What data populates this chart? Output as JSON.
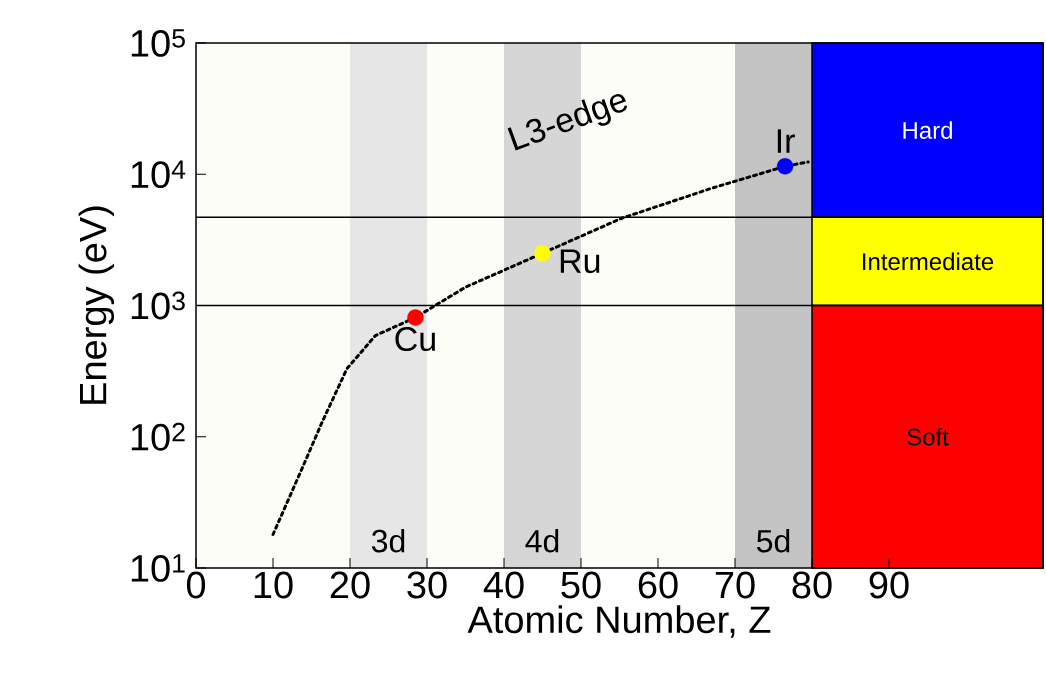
{
  "chart_data": {
    "type": "line",
    "xlabel": "Atomic Number, Z",
    "ylabel": "Energy (eV)",
    "log": "y",
    "xlim": [
      0,
      110
    ],
    "ylim": [
      10,
      100000
    ],
    "xticks": [
      0,
      10,
      20,
      30,
      40,
      50,
      60,
      70,
      80,
      90
    ],
    "yticks": [
      {
        "value": 10,
        "label": "10$^{1}$"
      },
      {
        "value": 100,
        "label": "10$^{2}$"
      },
      {
        "value": 1000,
        "label": "10$^{3}$"
      },
      {
        "value": 10000,
        "label": "10$^{4}$"
      },
      {
        "value": 100000,
        "label": "10$^{5}$"
      }
    ],
    "series": [
      {
        "color": "#000000",
        "line_style": "dotted",
        "marker": "none",
        "x": [
          10,
          13.7,
          16.4,
          19.6,
          23.3,
          28.5,
          35,
          45,
          55.2,
          66.9,
          76.5,
          79.5
        ],
        "values": [
          18,
          56,
          130,
          330,
          590,
          810,
          1380,
          2500,
          4600,
          7800,
          11500,
          12400
        ]
      },
      {
        "type": "scatter",
        "marker": "circle",
        "x": [
          28.5,
          45,
          76.5
        ],
        "values": [
          810,
          2500,
          11500
        ],
        "colors": [
          "#ff0000",
          "#ffff00",
          "#0000ff"
        ]
      }
    ],
    "bands": [
      {
        "axis": "x",
        "from": 20,
        "to": 30,
        "label": "3d",
        "color": "#e6e6e6"
      },
      {
        "axis": "x",
        "from": 40,
        "to": 50,
        "label": "4d",
        "color": "#d6d6d6"
      },
      {
        "axis": "x",
        "from": 70,
        "to": 80,
        "label": "5d",
        "color": "#c4c4c4"
      },
      {
        "axis": "y",
        "from": 4700,
        "to": 100000,
        "label": "Hard",
        "color": "#0000ff"
      },
      {
        "axis": "y",
        "from": 1000,
        "to": 4700,
        "label": "Intermediate",
        "color": "#ffff00"
      },
      {
        "axis": "y",
        "from": 10,
        "to": 1000,
        "label": "Soft",
        "color": "#ff0000"
      }
    ],
    "ref_lines": [
      {
        "axis": "y",
        "value": 4700
      },
      {
        "axis": "y",
        "value": 1000
      }
    ],
    "annotations": [
      {
        "text": "Cu",
        "x": 28.5,
        "y": 810
      },
      {
        "text": "Ru",
        "x": 45,
        "y": 2500
      },
      {
        "text": "Ir",
        "x": 76.5,
        "y": 11500
      },
      "L3-edge"
    ]
  }
}
